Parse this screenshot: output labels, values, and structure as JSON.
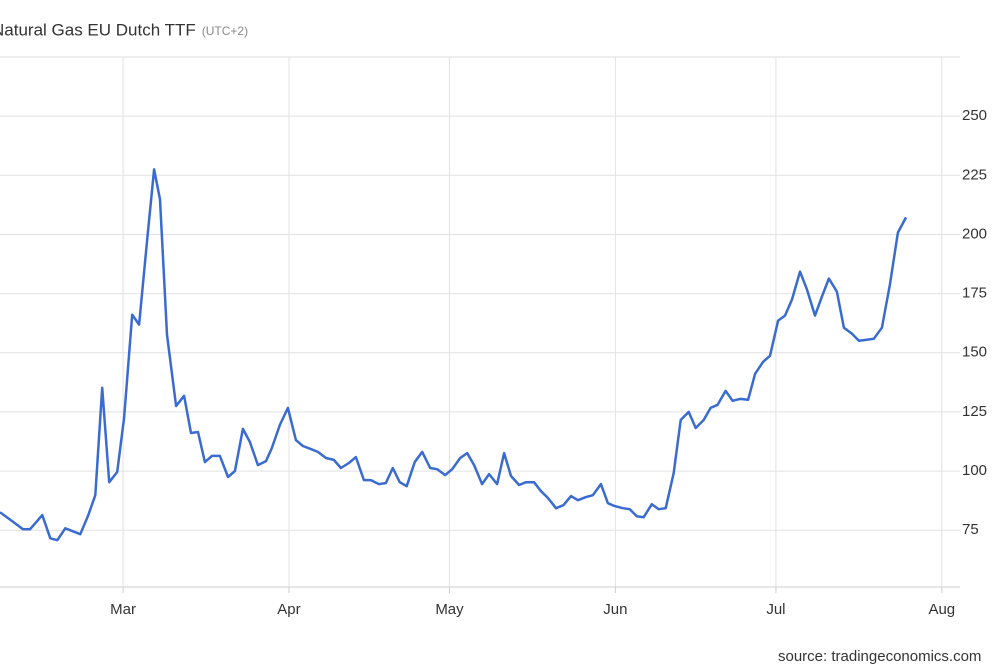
{
  "chart_data": {
    "type": "line",
    "title": "Natural Gas EU Dutch TTF",
    "subtitle": "(UTC+2)",
    "source": "source: tradingeconomics.com",
    "xlim": [
      37,
      216.4
    ],
    "ylim": [
      51,
      275
    ],
    "xticks": [
      {
        "value": 60,
        "label": "Mar"
      },
      {
        "value": 91,
        "label": "Apr"
      },
      {
        "value": 121,
        "label": "May"
      },
      {
        "value": 152,
        "label": "Jun"
      },
      {
        "value": 182,
        "label": "Jul"
      },
      {
        "value": 213,
        "label": "Aug"
      }
    ],
    "yticks": [
      75,
      100,
      125,
      150,
      175,
      200,
      225,
      250
    ],
    "grid": true,
    "x": [
      37.0,
      39.3,
      41.3,
      42.6,
      44.9,
      46.4,
      47.7,
      49.2,
      52.0,
      53.5,
      54.8,
      56.1,
      57.4,
      58.9,
      60.2,
      61.7,
      63.0,
      64.5,
      65.8,
      66.9,
      68.2,
      69.9,
      71.4,
      72.7,
      74.0,
      75.3,
      76.6,
      78.1,
      79.6,
      80.9,
      82.4,
      83.7,
      85.2,
      86.7,
      87.8,
      89.3,
      90.8,
      92.3,
      93.6,
      95.1,
      96.4,
      97.9,
      99.4,
      100.7,
      102.2,
      103.5,
      105.0,
      106.3,
      107.8,
      109.1,
      110.4,
      111.7,
      113.0,
      114.5,
      115.9,
      117.4,
      118.7,
      120.2,
      121.5,
      123.0,
      124.3,
      125.6,
      127.1,
      128.4,
      129.9,
      131.2,
      132.5,
      134.0,
      135.3,
      136.8,
      138.1,
      139.4,
      140.9,
      142.3,
      143.7,
      145.0,
      146.5,
      147.8,
      149.3,
      150.6,
      151.9,
      153.4,
      154.7,
      156.0,
      157.3,
      158.8,
      160.1,
      161.4,
      162.9,
      164.2,
      165.7,
      167.0,
      168.5,
      169.8,
      171.1,
      172.6,
      173.9,
      175.3,
      176.8,
      178.1,
      179.6,
      180.9,
      182.4,
      183.7,
      185.0,
      186.5,
      187.8,
      189.3,
      190.6,
      191.9,
      193.4,
      194.7,
      196.2,
      197.5,
      199.0,
      200.3,
      201.8,
      203.3,
      204.8,
      206.3
    ],
    "series": [
      {
        "name": "Natural Gas EU Dutch TTF",
        "color": "#3a6bd0",
        "values": [
          82.6,
          78.8,
          75.4,
          75.4,
          81.4,
          71.6,
          70.8,
          75.8,
          73.3,
          81.4,
          89.8,
          135.2,
          95.3,
          99.6,
          122.5,
          166.1,
          161.9,
          197.9,
          227.5,
          214.8,
          157.6,
          127.5,
          131.8,
          116.1,
          116.5,
          103.8,
          106.4,
          106.4,
          97.5,
          100.0,
          117.8,
          112.3,
          102.5,
          104.2,
          109.7,
          119.5,
          126.7,
          113.1,
          110.6,
          109.3,
          108.1,
          105.5,
          104.7,
          101.3,
          103.4,
          105.9,
          96.2,
          96.2,
          94.5,
          94.9,
          101.3,
          95.3,
          93.6,
          103.8,
          108.1,
          101.3,
          100.8,
          98.3,
          100.8,
          105.5,
          107.6,
          102.5,
          94.5,
          98.7,
          94.5,
          107.6,
          97.9,
          94.1,
          95.3,
          95.3,
          91.5,
          88.6,
          84.3,
          85.6,
          89.4,
          87.7,
          89.0,
          89.8,
          94.5,
          86.4,
          85.2,
          84.3,
          83.9,
          80.9,
          80.5,
          86.0,
          83.9,
          84.3,
          99.2,
          121.6,
          125.0,
          118.2,
          121.6,
          126.7,
          128.0,
          133.9,
          129.7,
          130.5,
          130.1,
          141.1,
          146.2,
          148.7,
          163.6,
          165.7,
          172.5,
          184.3,
          176.7,
          165.7,
          173.7,
          181.4,
          175.8,
          160.6,
          158.1,
          155.1,
          155.5,
          155.9,
          160.6,
          178.8,
          200.8,
          207.2
        ]
      }
    ]
  }
}
